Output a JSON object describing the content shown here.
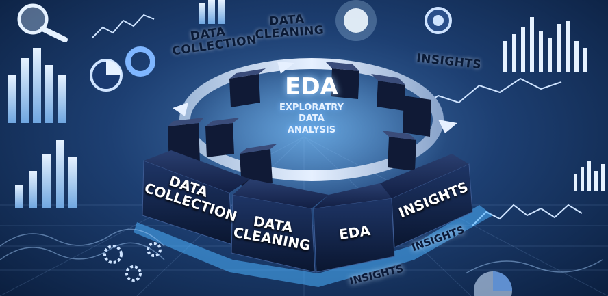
{
  "floating_labels": {
    "data_collection": "DATA\nCOLLECTION",
    "data_cleaning": "DATA\nCLEANING",
    "insights": "INSIGHTS"
  },
  "center": {
    "title": "EDA",
    "subtitle": "EXPLORATRY\nDATA\nANALYSIS"
  },
  "blocks": {
    "data_collection": "DATA\nCOLLECTION",
    "data_cleaning": "DATA\nCLEANING",
    "eda": "EDA",
    "insights": "INSIGHTS"
  },
  "floor_labels": [
    "INSIGHTS",
    "INSIGHTS"
  ],
  "colors": {
    "background_dark": "#0b1f3f",
    "background_light": "#3f6fa8",
    "block_top": "#1a2c5a",
    "glow": "#4db3ff"
  },
  "icons": [
    "magnifier-icon",
    "gear-icon",
    "pie-chart-icon",
    "light-bulb-icon",
    "bar-chart-icon",
    "line-chart-icon"
  ]
}
